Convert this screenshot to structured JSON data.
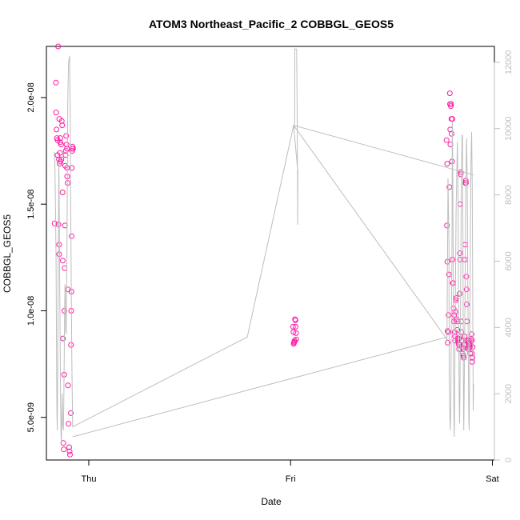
{
  "chart_data": {
    "type": "scatter",
    "title": "ATOM3 Northeast_Pacific_2 COBBGL_GEOS5",
    "xlabel": "Date",
    "ylabel": "COBBGL_GEOS5",
    "x_ticks": [
      {
        "label": "Thu",
        "value": 1.0
      },
      {
        "label": "Fri",
        "value": 2.0
      },
      {
        "label": "Sat",
        "value": 3.0
      }
    ],
    "y_ticks": [
      {
        "label": "5.0e-09",
        "value": 5e-09
      },
      {
        "label": "1.0e-08",
        "value": 1e-08
      },
      {
        "label": "1.5e-08",
        "value": 1.5e-08
      },
      {
        "label": "2.0e-08",
        "value": 2e-08
      }
    ],
    "y2_ticks": [
      {
        "label": "0",
        "value": 0
      },
      {
        "label": "2000",
        "value": 2000
      },
      {
        "label": "4000",
        "value": 4000
      },
      {
        "label": "6000",
        "value": 6000
      },
      {
        "label": "8000",
        "value": 8000
      },
      {
        "label": "10000",
        "value": 10000
      },
      {
        "label": "12000",
        "value": 12000
      }
    ],
    "xlim": [
      0.79,
      3.01
    ],
    "ylim": [
      3e-09,
      2.24e-08
    ],
    "y2lim": [
      0,
      12480
    ],
    "grid": false,
    "colors": {
      "points": "#ff1aa3",
      "line": "#bebebe",
      "frame": "#000000"
    },
    "series": [
      {
        "type": "points",
        "axis": "left",
        "points": [
          [
            0.831,
            1.41e-08
          ],
          [
            0.837,
            2.07e-08
          ],
          [
            0.838,
            1.93e-08
          ],
          [
            0.84,
            1.85e-08
          ],
          [
            0.842,
            1.81e-08
          ],
          [
            0.845,
            1.8e-08
          ],
          [
            0.845,
            1.73e-08
          ],
          [
            0.848,
            2.24e-08
          ],
          [
            0.85,
            1.405e-08
          ],
          [
            0.852,
            1.71e-08
          ],
          [
            0.853,
            1.31e-08
          ],
          [
            0.853,
            1.265e-08
          ],
          [
            0.854,
            1.9e-08
          ],
          [
            0.856,
            1.69e-08
          ],
          [
            0.857,
            1.74e-08
          ],
          [
            0.858,
            1.79e-08
          ],
          [
            0.859,
            1.81e-08
          ],
          [
            0.86,
            1.7e-08
          ],
          [
            0.863,
            1.78e-08
          ],
          [
            0.864,
            1.71e-08
          ],
          [
            0.866,
            1.89e-08
          ],
          [
            0.868,
            1.87e-08
          ],
          [
            0.87,
            1.555e-08
          ],
          [
            0.871,
            1.235e-08
          ],
          [
            0.872,
            8.7e-09
          ],
          [
            0.874,
            3.8e-09
          ],
          [
            0.876,
            3.5e-09
          ],
          [
            0.878,
            7e-09
          ],
          [
            0.879,
            1e-08
          ],
          [
            0.88,
            1.2e-08
          ],
          [
            0.882,
            1.4e-08
          ],
          [
            0.883,
            1.68e-08
          ],
          [
            0.885,
            1.73e-08
          ],
          [
            0.886,
            1.75e-08
          ],
          [
            0.888,
            1.82e-08
          ],
          [
            0.89,
            1.78e-08
          ],
          [
            0.892,
            1.76e-08
          ],
          [
            0.892,
            1.67e-08
          ],
          [
            0.893,
            1.63e-08
          ],
          [
            0.895,
            1.6e-08
          ],
          [
            0.896,
            1.1e-08
          ],
          [
            0.897,
            6.5e-09
          ],
          [
            0.899,
            4.7e-09
          ],
          [
            0.903,
            3.6e-09
          ],
          [
            0.905,
            3.4e-09
          ],
          [
            0.907,
            3.25e-09
          ],
          [
            0.911,
            5.2e-09
          ],
          [
            0.912,
            8.4e-09
          ],
          [
            0.913,
            1e-08
          ],
          [
            0.914,
            1.09e-08
          ],
          [
            0.915,
            1.35e-08
          ],
          [
            0.916,
            1.67e-08
          ],
          [
            0.917,
            1.75e-08
          ],
          [
            0.918,
            1.76e-08
          ],
          [
            0.92,
            1.77e-08
          ],
          [
            0.922,
            1.76e-08
          ],
          [
            2.012,
            9.25e-09
          ],
          [
            2.014,
            9e-09
          ],
          [
            2.015,
            8.45e-09
          ],
          [
            2.017,
            8.5e-09
          ],
          [
            2.019,
            8.55e-09
          ],
          [
            2.02,
            8.6e-09
          ],
          [
            2.022,
            9.6e-09
          ],
          [
            2.024,
            9.55e-09
          ],
          [
            2.025,
            9.25e-09
          ],
          [
            2.027,
            8.95e-09
          ],
          [
            2.028,
            8.65e-09
          ],
          [
            2.773,
            1.8e-08
          ],
          [
            2.775,
            1.4e-08
          ],
          [
            2.776,
            1.69e-08
          ],
          [
            2.777,
            1.23e-08
          ],
          [
            2.778,
            9.05e-09
          ],
          [
            2.779,
            8.5e-09
          ],
          [
            2.781,
            9e-09
          ],
          [
            2.783,
            9.8e-09
          ],
          [
            2.785,
            1.17e-08
          ],
          [
            2.787,
            1.58e-08
          ],
          [
            2.789,
            2.02e-08
          ],
          [
            2.79,
            1.97e-08
          ],
          [
            2.791,
            1.85e-08
          ],
          [
            2.792,
            1.78e-08
          ],
          [
            2.794,
            1.96e-08
          ],
          [
            2.796,
            1.97e-08
          ],
          [
            2.797,
            1.9e-08
          ],
          [
            2.798,
            1.83e-08
          ],
          [
            2.8,
            1.7e-08
          ],
          [
            2.801,
            1.9e-08
          ],
          [
            2.802,
            1.24e-08
          ],
          [
            2.804,
            1.13e-08
          ],
          [
            2.806,
            1.13e-08
          ],
          [
            2.808,
            1.01e-08
          ],
          [
            2.81,
            9.5e-09
          ],
          [
            2.811,
            9.8e-09
          ],
          [
            2.813,
            9e-09
          ],
          [
            2.814,
            8.8e-09
          ],
          [
            2.815,
            8.6e-09
          ],
          [
            2.816,
            9.95e-09
          ],
          [
            2.818,
            1.05e-08
          ],
          [
            2.82,
            1.06e-08
          ],
          [
            2.822,
            9.6e-09
          ],
          [
            2.824,
            9.5e-09
          ],
          [
            2.826,
            9.1e-09
          ],
          [
            2.828,
            8.7e-09
          ],
          [
            2.83,
            8.6e-09
          ],
          [
            2.832,
            8.5e-09
          ],
          [
            2.834,
            8.4e-09
          ],
          [
            2.835,
            8.2e-09
          ],
          [
            2.836,
            8.7e-09
          ],
          [
            2.838,
            1.08e-08
          ],
          [
            2.839,
            1.27e-08
          ],
          [
            2.84,
            1.24e-08
          ],
          [
            2.841,
            1.5e-08
          ],
          [
            2.843,
            1.64e-08
          ],
          [
            2.844,
            1.65e-08
          ],
          [
            2.845,
            9.5e-09
          ],
          [
            2.846,
            9e-09
          ],
          [
            2.848,
            8.6e-09
          ],
          [
            2.85,
            8.3e-09
          ],
          [
            2.852,
            8e-09
          ],
          [
            2.854,
            8.2e-09
          ],
          [
            2.856,
            7.9e-09
          ],
          [
            2.858,
            7.8e-09
          ],
          [
            2.86,
            8.4e-09
          ],
          [
            2.862,
            8.8e-09
          ],
          [
            2.864,
            1.24e-08
          ],
          [
            2.865,
            1.31e-08
          ],
          [
            2.866,
            1.6e-08
          ],
          [
            2.868,
            1.61e-08
          ],
          [
            2.869,
            1.6e-08
          ],
          [
            2.871,
            1.16e-08
          ],
          [
            2.872,
            1.1e-08
          ],
          [
            2.873,
            1.03e-08
          ],
          [
            2.875,
            9.5e-09
          ],
          [
            2.877,
            8.6e-09
          ],
          [
            2.879,
            8.3e-09
          ],
          [
            2.881,
            8.2e-09
          ],
          [
            2.882,
            8.5e-09
          ],
          [
            2.884,
            8.6e-09
          ],
          [
            2.886,
            8.4e-09
          ],
          [
            2.888,
            8.3e-09
          ],
          [
            2.89,
            8e-09
          ],
          [
            2.892,
            8.4e-09
          ],
          [
            2.894,
            8.6e-09
          ],
          [
            2.895,
            8.7e-09
          ],
          [
            2.897,
            8.9e-09
          ],
          [
            2.898,
            8.6e-09
          ],
          [
            2.899,
            8e-09
          ],
          [
            2.9,
            7.6e-09
          ],
          [
            2.901,
            7.8e-09
          ],
          [
            2.902,
            8.3e-09
          ]
        ]
      },
      {
        "type": "line",
        "axis": "right",
        "points": [
          [
            0.828,
            9300
          ],
          [
            0.832,
            9000
          ],
          [
            0.835,
            7500
          ],
          [
            0.838,
            6000
          ],
          [
            0.84,
            3500
          ],
          [
            0.842,
            1500
          ],
          [
            0.844,
            900
          ],
          [
            0.846,
            2500
          ],
          [
            0.848,
            5000
          ],
          [
            0.85,
            7000
          ],
          [
            0.852,
            9000
          ],
          [
            0.854,
            7500
          ],
          [
            0.856,
            5500
          ],
          [
            0.858,
            3500
          ],
          [
            0.86,
            1800
          ],
          [
            0.862,
            800
          ],
          [
            0.864,
            500
          ],
          [
            0.866,
            1300
          ],
          [
            0.868,
            2000
          ],
          [
            0.87,
            1200
          ],
          [
            0.872,
            1000
          ],
          [
            0.874,
            900
          ],
          [
            0.876,
            1600
          ],
          [
            0.878,
            2900
          ],
          [
            0.88,
            4200
          ],
          [
            0.882,
            5300
          ],
          [
            0.884,
            4800
          ],
          [
            0.886,
            3900
          ],
          [
            0.888,
            3800
          ],
          [
            0.89,
            5000
          ],
          [
            0.892,
            6500
          ],
          [
            0.894,
            8500
          ],
          [
            0.896,
            10800
          ],
          [
            0.9,
            12000
          ],
          [
            0.905,
            12200
          ],
          [
            0.908,
            10500
          ],
          [
            0.91,
            8000
          ],
          [
            0.913,
            5500
          ],
          [
            0.916,
            3000
          ],
          [
            0.92,
            1000
          ],
          [
            1.782,
            3700
          ],
          [
            1.78,
            3700
          ],
          [
            1.785,
            3700
          ],
          [
            2.015,
            10100
          ],
          [
            2.018,
            10000
          ],
          [
            2.02,
            10200
          ],
          [
            2.021,
            12400
          ],
          [
            2.03,
            12400
          ],
          [
            2.032,
            11000
          ],
          [
            2.034,
            9000
          ],
          [
            2.035,
            7100
          ],
          [
            2.036,
            8700
          ],
          [
            2.015,
            10100
          ],
          [
            2.768,
            3700
          ],
          [
            2.775,
            3600
          ],
          [
            2.778,
            6400
          ],
          [
            2.78,
            8500
          ],
          [
            2.785,
            6600
          ],
          [
            2.786,
            2600
          ],
          [
            2.788,
            1700
          ],
          [
            2.791,
            900
          ],
          [
            2.794,
            1500
          ],
          [
            2.796,
            3700
          ],
          [
            2.8,
            6500
          ],
          [
            2.801,
            9600
          ],
          [
            2.802,
            10200
          ],
          [
            2.806,
            6300
          ],
          [
            2.807,
            2600
          ],
          [
            2.809,
            1600
          ],
          [
            2.811,
            700
          ],
          [
            2.812,
            1100
          ],
          [
            2.815,
            3600
          ],
          [
            2.82,
            7500
          ],
          [
            2.825,
            9100
          ],
          [
            2.827,
            9600
          ],
          [
            2.83,
            8000
          ],
          [
            2.832,
            5200
          ],
          [
            2.835,
            2000
          ],
          [
            2.837,
            1100
          ],
          [
            2.839,
            1900
          ],
          [
            2.842,
            4400
          ],
          [
            2.846,
            8200
          ],
          [
            2.85,
            9800
          ],
          [
            2.852,
            9800
          ],
          [
            2.854,
            7000
          ],
          [
            2.856,
            2600
          ],
          [
            2.858,
            900
          ],
          [
            2.86,
            2000
          ],
          [
            2.864,
            4800
          ],
          [
            2.868,
            8200
          ],
          [
            2.872,
            9700
          ],
          [
            2.875,
            8700
          ],
          [
            2.878,
            5500
          ],
          [
            2.881,
            2700
          ],
          [
            2.883,
            1200
          ],
          [
            2.885,
            900
          ],
          [
            2.888,
            3300
          ],
          [
            2.891,
            6800
          ],
          [
            2.894,
            9000
          ],
          [
            2.897,
            9900
          ],
          [
            2.9,
            8300
          ],
          [
            2.902,
            5500
          ],
          [
            2.905,
            1500
          ],
          [
            2.907,
            2300
          ]
        ]
      },
      {
        "type": "polyline",
        "axis": "right",
        "points": [
          [
            0.92,
            700
          ],
          [
            2.77,
            3700
          ]
        ]
      },
      {
        "type": "polyline",
        "axis": "right",
        "points": [
          [
            2.015,
            10100
          ],
          [
            2.907,
            8600
          ]
        ]
      }
    ]
  }
}
